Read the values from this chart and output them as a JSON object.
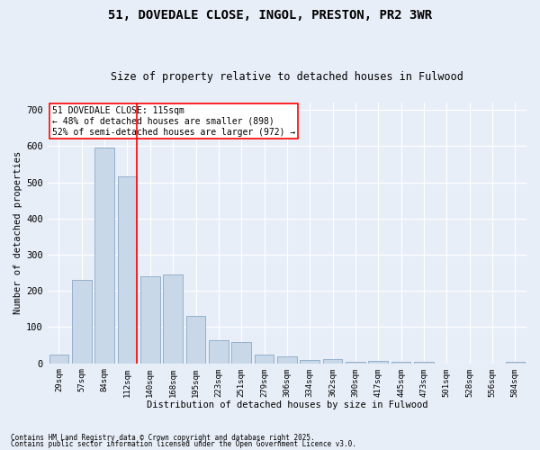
{
  "title": "51, DOVEDALE CLOSE, INGOL, PRESTON, PR2 3WR",
  "subtitle": "Size of property relative to detached houses in Fulwood",
  "xlabel": "Distribution of detached houses by size in Fulwood",
  "ylabel": "Number of detached properties",
  "categories": [
    "29sqm",
    "57sqm",
    "84sqm",
    "112sqm",
    "140sqm",
    "168sqm",
    "195sqm",
    "223sqm",
    "251sqm",
    "279sqm",
    "306sqm",
    "334sqm",
    "362sqm",
    "390sqm",
    "417sqm",
    "445sqm",
    "473sqm",
    "501sqm",
    "528sqm",
    "556sqm",
    "584sqm"
  ],
  "values": [
    25,
    230,
    595,
    515,
    240,
    245,
    130,
    65,
    60,
    25,
    18,
    10,
    12,
    5,
    8,
    5,
    5,
    0,
    0,
    0,
    5
  ],
  "bar_color": "#c8d8e8",
  "bar_edge_color": "#7a9dbf",
  "background_color": "#e8eef8",
  "grid_color": "#ffffff",
  "red_line_index": 3,
  "annotation_title": "51 DOVEDALE CLOSE: 115sqm",
  "annotation_line1": "← 48% of detached houses are smaller (898)",
  "annotation_line2": "52% of semi-detached houses are larger (972) →",
  "ylim": [
    0,
    720
  ],
  "yticks": [
    0,
    100,
    200,
    300,
    400,
    500,
    600,
    700
  ],
  "footnote1": "Contains HM Land Registry data © Crown copyright and database right 2025.",
  "footnote2": "Contains public sector information licensed under the Open Government Licence v3.0."
}
